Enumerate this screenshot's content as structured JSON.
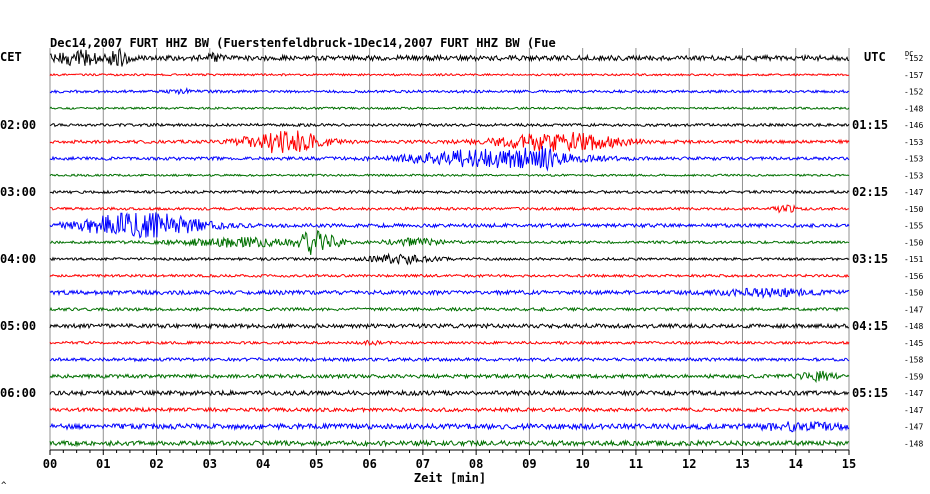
{
  "chart_data": {
    "type": "line",
    "title": "Dec14,2007   FURT HHZ BW (Fuerstenfeldbruck-1Dec14,2007   FURT HHZ BW (Fue",
    "left_header": "CET",
    "right_header": "UTC",
    "dc_header": "DC",
    "xlabel": "Zeit [min]",
    "xlim": [
      0,
      15
    ],
    "x_ticks": [
      "00",
      "01",
      "02",
      "03",
      "04",
      "05",
      "06",
      "07",
      "08",
      "09",
      "10",
      "11",
      "12",
      "13",
      "14",
      "15"
    ],
    "grid": true,
    "corner_mark": "^",
    "colors": {
      "black": "#000000",
      "red": "#ff0000",
      "blue": "#0000ff",
      "green": "#007000",
      "grid": "#909090"
    },
    "traces": [
      {
        "row": 0,
        "color": "black",
        "dc": "-152",
        "amp": 2.5,
        "bursts": [
          {
            "t": 0.6,
            "w": 0.7,
            "a": 6
          },
          {
            "t": 1.3,
            "w": 0.25,
            "a": 9
          },
          {
            "t": 3.0,
            "w": 0.3,
            "a": 3
          }
        ]
      },
      {
        "row": 1,
        "color": "red",
        "dc": "-157",
        "amp": 1.0,
        "bursts": []
      },
      {
        "row": 2,
        "color": "blue",
        "dc": "-152",
        "amp": 1.3,
        "bursts": [
          {
            "t": 2.5,
            "w": 0.3,
            "a": 2
          }
        ]
      },
      {
        "row": 3,
        "color": "green",
        "dc": "-148",
        "amp": 1.0,
        "bursts": []
      },
      {
        "row": 4,
        "color": "black",
        "dc": "-146",
        "amp": 1.4,
        "bursts": []
      },
      {
        "row": 5,
        "color": "red",
        "dc": "-153",
        "amp": 1.6,
        "bursts": [
          {
            "t": 4.4,
            "w": 1.0,
            "a": 11
          },
          {
            "t": 9.6,
            "w": 1.6,
            "a": 9
          }
        ]
      },
      {
        "row": 6,
        "color": "blue",
        "dc": "-153",
        "amp": 1.6,
        "bursts": [
          {
            "t": 8.3,
            "w": 2.0,
            "a": 9
          },
          {
            "t": 9.2,
            "w": 0.4,
            "a": 6
          }
        ]
      },
      {
        "row": 7,
        "color": "green",
        "dc": "-153",
        "amp": 1.0,
        "bursts": []
      },
      {
        "row": 8,
        "color": "black",
        "dc": "-147",
        "amp": 1.4,
        "bursts": []
      },
      {
        "row": 9,
        "color": "red",
        "dc": "-150",
        "amp": 1.3,
        "bursts": [
          {
            "t": 13.8,
            "w": 0.3,
            "a": 3
          }
        ]
      },
      {
        "row": 10,
        "color": "blue",
        "dc": "-155",
        "amp": 1.8,
        "bursts": [
          {
            "t": 1.7,
            "w": 1.5,
            "a": 13
          }
        ]
      },
      {
        "row": 11,
        "color": "green",
        "dc": "-150",
        "amp": 1.3,
        "bursts": [
          {
            "t": 3.5,
            "w": 1.6,
            "a": 4
          },
          {
            "t": 5.0,
            "w": 0.5,
            "a": 12
          },
          {
            "t": 6.8,
            "w": 0.8,
            "a": 3
          }
        ]
      },
      {
        "row": 12,
        "color": "black",
        "dc": "-151",
        "amp": 1.3,
        "bursts": [
          {
            "t": 6.6,
            "w": 0.8,
            "a": 4
          }
        ]
      },
      {
        "row": 13,
        "color": "red",
        "dc": "-156",
        "amp": 1.3,
        "bursts": []
      },
      {
        "row": 14,
        "color": "blue",
        "dc": "-150",
        "amp": 2.0,
        "bursts": [
          {
            "t": 13.5,
            "w": 1.2,
            "a": 3
          }
        ]
      },
      {
        "row": 15,
        "color": "green",
        "dc": "-147",
        "amp": 1.5,
        "bursts": []
      },
      {
        "row": 16,
        "color": "black",
        "dc": "-148",
        "amp": 2.0,
        "bursts": []
      },
      {
        "row": 17,
        "color": "red",
        "dc": "-145",
        "amp": 1.3,
        "bursts": [
          {
            "t": 6.1,
            "w": 0.3,
            "a": 2
          }
        ]
      },
      {
        "row": 18,
        "color": "blue",
        "dc": "-158",
        "amp": 1.6,
        "bursts": []
      },
      {
        "row": 19,
        "color": "green",
        "dc": "-159",
        "amp": 1.8,
        "bursts": [
          {
            "t": 14.4,
            "w": 0.4,
            "a": 5
          }
        ]
      },
      {
        "row": 20,
        "color": "black",
        "dc": "-147",
        "amp": 2.2,
        "bursts": []
      },
      {
        "row": 21,
        "color": "red",
        "dc": "-147",
        "amp": 1.8,
        "bursts": []
      },
      {
        "row": 22,
        "color": "blue",
        "dc": "-147",
        "amp": 2.6,
        "bursts": [
          {
            "t": 14.0,
            "w": 1.0,
            "a": 3
          }
        ]
      },
      {
        "row": 23,
        "color": "green",
        "dc": "-148",
        "amp": 2.4,
        "bursts": []
      }
    ],
    "left_hour_labels": [
      {
        "row": 4,
        "text": "02:00"
      },
      {
        "row": 8,
        "text": "03:00"
      },
      {
        "row": 12,
        "text": "04:00"
      },
      {
        "row": 16,
        "text": "05:00"
      },
      {
        "row": 20,
        "text": "06:00"
      }
    ],
    "right_hour_labels": [
      {
        "row": 4,
        "text": "01:15"
      },
      {
        "row": 8,
        "text": "02:15"
      },
      {
        "row": 12,
        "text": "03:15"
      },
      {
        "row": 16,
        "text": "04:15"
      },
      {
        "row": 20,
        "text": "05:15"
      }
    ]
  }
}
